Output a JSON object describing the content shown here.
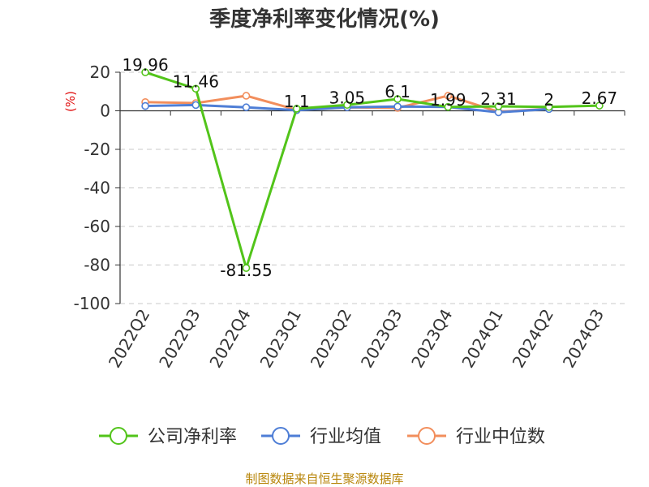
{
  "chart_data": {
    "type": "line",
    "title": "季度净利率变化情况(%)",
    "ylabel": "(%)",
    "xlabel": "",
    "categories": [
      "2022Q2",
      "2022Q3",
      "2022Q4",
      "2023Q1",
      "2023Q2",
      "2023Q3",
      "2023Q4",
      "2024Q1",
      "2024Q2",
      "2024Q3"
    ],
    "ylim": [
      -100,
      20
    ],
    "yticks": [
      20,
      0,
      -20,
      -40,
      -60,
      -80,
      -100
    ],
    "grid": true,
    "legend_position": "bottom",
    "series": [
      {
        "name": "公司净利率",
        "color": "#52c41a",
        "values": [
          19.96,
          11.46,
          -81.55,
          1.1,
          3.05,
          6.1,
          1.99,
          2.31,
          2,
          2.67
        ],
        "labels": [
          "19.96",
          "11.46",
          "-81.55",
          "1.1",
          "3.05",
          "6.1",
          "1.99",
          "2.31",
          "2",
          "2.67"
        ]
      },
      {
        "name": "行业均值",
        "color": "#4e7ed6",
        "values": [
          2.5,
          3,
          1.8,
          0.3,
          1.8,
          2.2,
          2.0,
          -0.8,
          0.9,
          null
        ]
      },
      {
        "name": "行业中位数",
        "color": "#f28e5c",
        "values": [
          4.5,
          4.0,
          7.8,
          0.5,
          1.8,
          1.5,
          7.8,
          -0.5,
          1.0,
          null
        ]
      }
    ]
  },
  "source": "制图数据来自恒生聚源数据库"
}
